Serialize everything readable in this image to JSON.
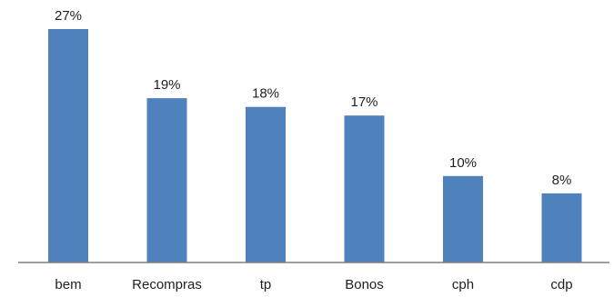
{
  "chart_data": {
    "type": "bar",
    "categories": [
      "bem",
      "Recompras",
      "tp",
      "Bonos",
      "cph",
      "cdp"
    ],
    "values": [
      27,
      19,
      18,
      17,
      10,
      8
    ],
    "data_labels": [
      "27%",
      "19%",
      "18%",
      "17%",
      "10%",
      "8%"
    ],
    "value_unit": "%",
    "ylim": [
      0,
      28.5
    ],
    "grid": false,
    "legend": "none",
    "bar_color": "#4f81bd",
    "axis_color": "#7f7f7f"
  }
}
